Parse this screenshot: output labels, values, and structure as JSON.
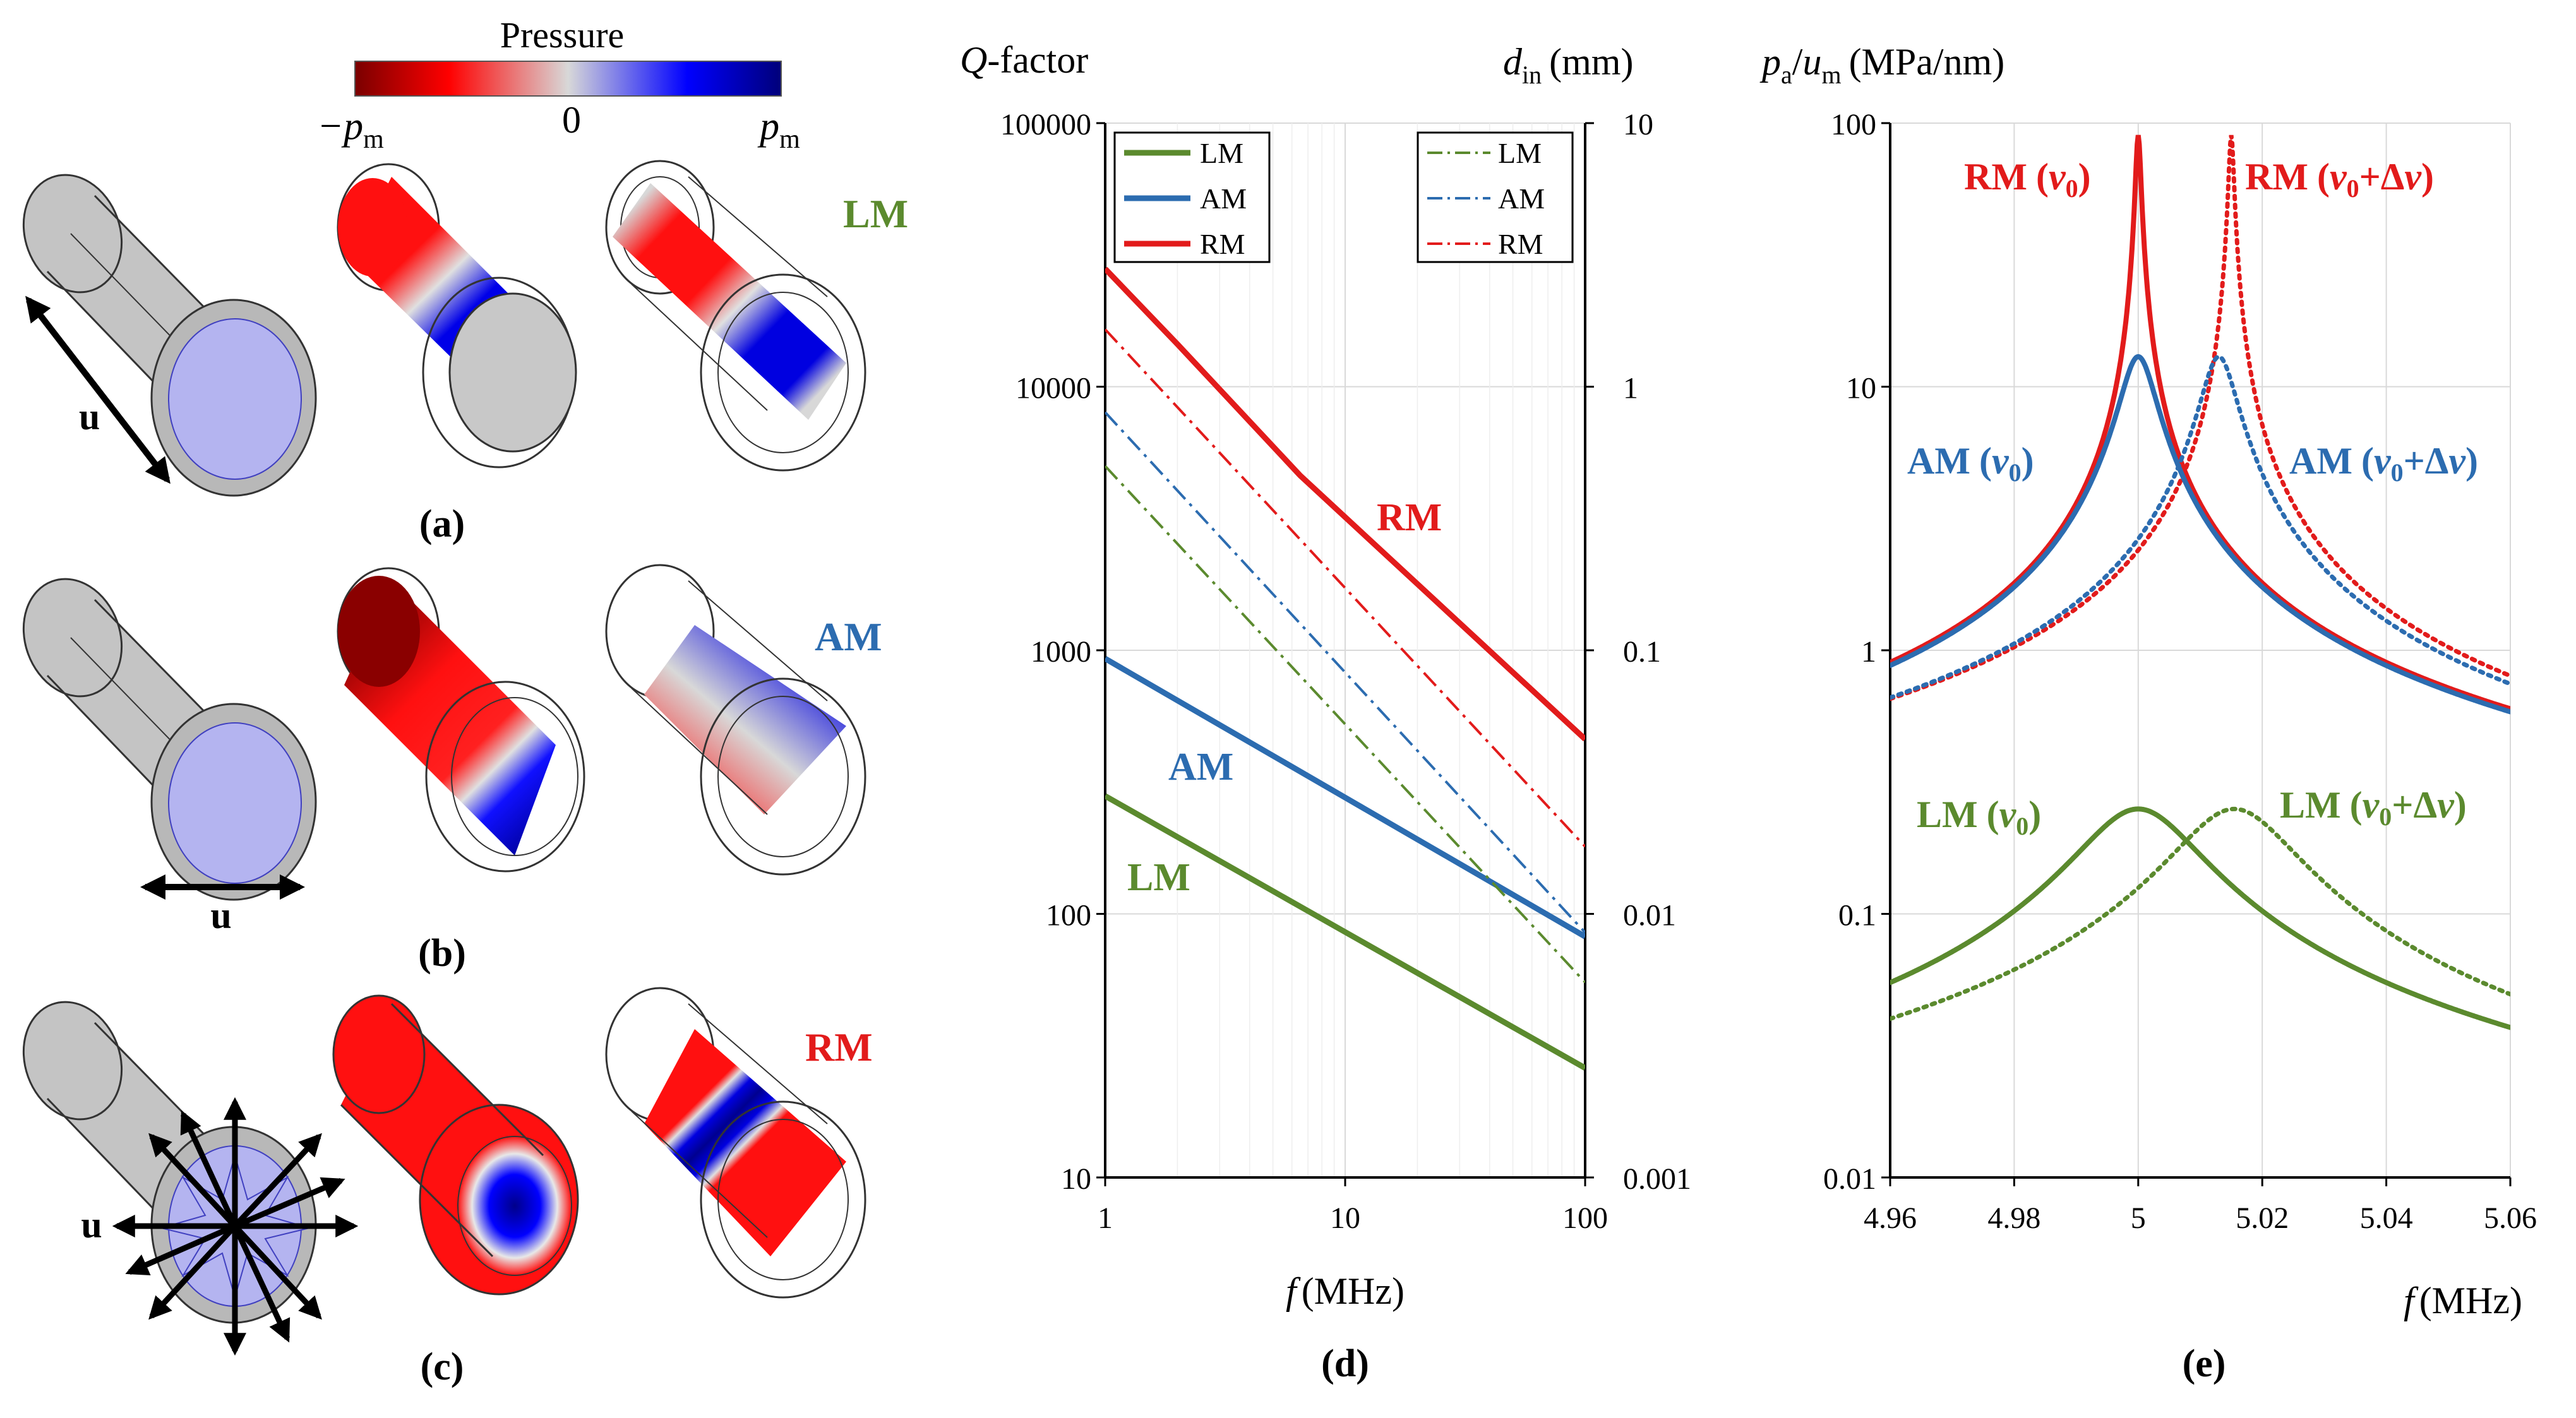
{
  "colors": {
    "lm": "#5B8A2E",
    "am": "#2C6CB0",
    "rm": "#E21B1B",
    "grid": "#d9d9d9",
    "cyl_gray": "#c4c4c4",
    "disk": "#b4b4f0",
    "p_neg": "#8a0000",
    "p_pos": "#00008a"
  },
  "colorbar": {
    "title": "Pressure",
    "min_label": "−p",
    "min_sub": "m",
    "zero_label": "0",
    "max_label": "p",
    "max_sub": "m"
  },
  "panels": {
    "a": {
      "label": "(a)",
      "mode_tag": "LM",
      "u_label": "u"
    },
    "b": {
      "label": "(b)",
      "mode_tag": "AM",
      "u_label": "u"
    },
    "c": {
      "label": "(c)",
      "mode_tag": "RM",
      "u_label": "u"
    },
    "d": {
      "label": "(d)"
    },
    "e": {
      "label": "(e)"
    }
  },
  "chart_data": [
    {
      "id": "d",
      "type": "line",
      "title": "",
      "xlabel": "f (MHz)",
      "xlabel_var": "f",
      "xlabel_unit": "(MHz)",
      "ylabel": "Q-factor",
      "ylabel_var": "Q",
      "ylabel_rest": "-factor",
      "y2label": "d_in (mm)",
      "y2label_var": "d",
      "y2label_sub": "in",
      "y2label_unit": "(mm)",
      "xscale": "log",
      "yscale": "log",
      "y2scale": "log",
      "xlim": [
        1,
        100
      ],
      "ylim": [
        10,
        100000
      ],
      "y2lim": [
        0.001,
        10
      ],
      "xticks": [
        "1",
        "10",
        "100"
      ],
      "yticks": [
        "10",
        "100",
        "1000",
        "10000",
        "100000"
      ],
      "y2ticks": [
        "0.001",
        "0.01",
        "0.1",
        "1",
        "10"
      ],
      "grid": true,
      "legend_left": [
        "LM",
        "AM",
        "RM"
      ],
      "legend_right": [
        "LM",
        "AM",
        "RM"
      ],
      "legend_placement": "top-left and top-right",
      "series": [
        {
          "name": "LM",
          "axis": "left",
          "style": "solid",
          "color": "#5B8A2E",
          "x": [
            1,
            100
          ],
          "y": [
            280,
            26
          ]
        },
        {
          "name": "AM",
          "axis": "left",
          "style": "solid",
          "color": "#2C6CB0",
          "x": [
            1,
            45,
            100
          ],
          "y": [
            930,
            125,
            82
          ]
        },
        {
          "name": "RM",
          "axis": "left",
          "style": "solid",
          "color": "#E21B1B",
          "x": [
            1,
            2,
            6.5,
            100
          ],
          "y": [
            28000,
            14500,
            4600,
            460
          ]
        },
        {
          "name": "LM",
          "axis": "right",
          "style": "dashdot",
          "color": "#5B8A2E",
          "x": [
            1,
            100
          ],
          "y": [
            0.5,
            0.0055
          ]
        },
        {
          "name": "AM",
          "axis": "right",
          "style": "dashdot",
          "color": "#2C6CB0",
          "x": [
            1,
            100
          ],
          "y": [
            0.8,
            0.0085
          ]
        },
        {
          "name": "RM",
          "axis": "right",
          "style": "dashdot",
          "color": "#E21B1B",
          "x": [
            1,
            100
          ],
          "y": [
            1.65,
            0.018
          ]
        }
      ],
      "annotations": [
        "RM",
        "AM",
        "LM"
      ]
    },
    {
      "id": "e",
      "type": "line",
      "title": "",
      "xlabel": "f (MHz)",
      "xlabel_var": "f",
      "xlabel_unit": "(MHz)",
      "ylabel": "p_a/u_m (MPa/nm)",
      "ylabel_p": "p",
      "ylabel_psub": "a",
      "ylabel_slash": "/",
      "ylabel_u": "u",
      "ylabel_usub": "m",
      "ylabel_unit": "(MPa/nm)",
      "xscale": "linear",
      "yscale": "log",
      "xlim": [
        4.96,
        5.06
      ],
      "ylim": [
        0.01,
        100
      ],
      "xticks": [
        "4.96",
        "4.98",
        "5",
        "5.02",
        "5.04",
        "5.06"
      ],
      "yticks": [
        "0.01",
        "0.1",
        "1",
        "10",
        "100"
      ],
      "grid": true,
      "series": [
        {
          "name": "RM (v0)",
          "style": "solid",
          "color": "#E21B1B",
          "f0": 5.0,
          "peak": 90,
          "gamma": 0.0004
        },
        {
          "name": "RM (v0+Δv)",
          "style": "dotted",
          "color": "#E21B1B",
          "f0": 5.015,
          "peak": 90,
          "gamma": 0.0004
        },
        {
          "name": "AM (v0)",
          "style": "solid",
          "color": "#2C6CB0",
          "f0": 5.0,
          "peak": 13,
          "gamma": 0.0027
        },
        {
          "name": "AM (v0+Δv)",
          "style": "dotted",
          "color": "#2C6CB0",
          "f0": 5.013,
          "peak": 13,
          "gamma": 0.0027
        },
        {
          "name": "LM (v0)",
          "style": "solid",
          "color": "#5B8A2E",
          "f0": 5.0,
          "peak": 0.25,
          "gamma": 0.009
        },
        {
          "name": "LM (v0+Δv)",
          "style": "dotted",
          "color": "#5B8A2E",
          "f0": 5.0155,
          "peak": 0.25,
          "gamma": 0.009
        }
      ],
      "annotations": {
        "rm_v0": {
          "mode": "RM",
          "open": "(",
          "v": "v",
          "sub": "0",
          "close": ")"
        },
        "rm_dv": {
          "mode": "RM",
          "open": "(",
          "v": "v",
          "sub": "0",
          "plus": "+Δ",
          "v2": "v",
          "close": ")"
        },
        "am_v0": {
          "mode": "AM",
          "open": "(",
          "v": "v",
          "sub": "0",
          "close": ")"
        },
        "am_dv": {
          "mode": "AM",
          "open": "(",
          "v": "v",
          "sub": "0",
          "plus": "+Δ",
          "v2": "v",
          "close": ")"
        },
        "lm_v0": {
          "mode": "LM",
          "open": "(",
          "v": "v",
          "sub": "0",
          "close": ")"
        },
        "lm_dv": {
          "mode": "LM",
          "open": "(",
          "v": "v",
          "sub": "0",
          "plus": "+Δ",
          "v2": "v",
          "close": ")"
        }
      }
    }
  ]
}
